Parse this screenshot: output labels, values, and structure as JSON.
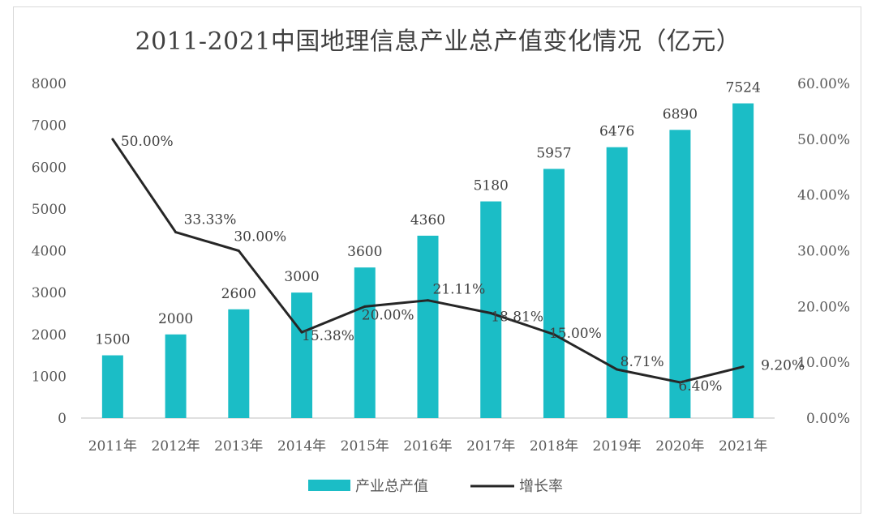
{
  "chart_data": {
    "type": "bar+line",
    "title": "2011-2021中国地理信息产业总产值变化情况（亿元）",
    "categories": [
      "2011年",
      "2012年",
      "2013年",
      "2014年",
      "2015年",
      "2016年",
      "2017年",
      "2018年",
      "2019年",
      "2020年",
      "2021年"
    ],
    "series": [
      {
        "name": "产业总产值",
        "type": "bar",
        "axis": "left",
        "values": [
          1500,
          2000,
          2600,
          3000,
          3600,
          4360,
          5180,
          5957,
          6476,
          6890,
          7524
        ],
        "labels": [
          "1500",
          "2000",
          "2600",
          "3000",
          "3600",
          "4360",
          "5180",
          "5957",
          "6476",
          "6890",
          "7524"
        ]
      },
      {
        "name": "增长率",
        "type": "line",
        "axis": "right",
        "values": [
          50.0,
          33.33,
          30.0,
          15.38,
          20.0,
          21.11,
          18.81,
          15.0,
          8.71,
          6.4,
          9.2
        ],
        "labels": [
          "50.00%",
          "33.33%",
          "30.00%",
          "15.38%",
          "20.00%",
          "21.11%",
          "18.81%",
          "15.00%",
          "8.71%",
          "6.40%",
          "9.20%"
        ]
      }
    ],
    "y_left": {
      "ylim": [
        0,
        8000
      ],
      "ticks": [
        "0",
        "1000",
        "2000",
        "3000",
        "4000",
        "5000",
        "6000",
        "7000",
        "8000"
      ]
    },
    "y_right": {
      "ylim": [
        0,
        60
      ],
      "ticks": [
        "0.00%",
        "10.00%",
        "20.00%",
        "30.00%",
        "40.00%",
        "50.00%",
        "60.00%"
      ]
    },
    "legend_position": "bottom-center",
    "grid": false,
    "colors": {
      "bar": "#1bbdc6",
      "line": "#262626",
      "text": "#404040",
      "axis": "#bfbfbf"
    }
  }
}
